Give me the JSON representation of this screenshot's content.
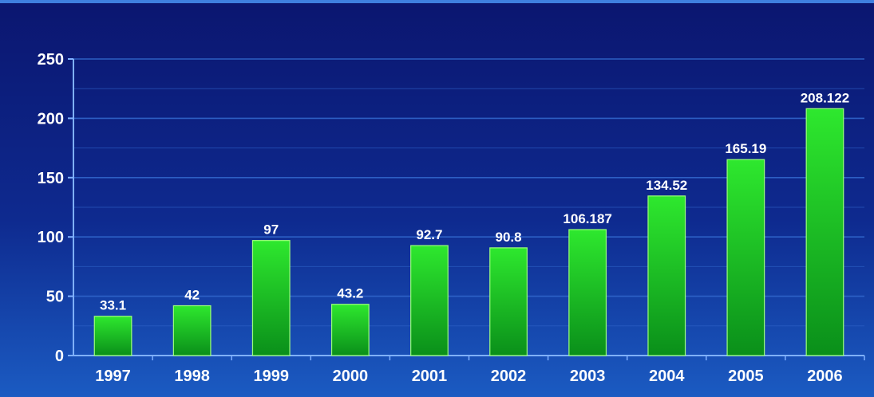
{
  "chart_data": {
    "type": "bar",
    "categories": [
      "1997",
      "1998",
      "1999",
      "2000",
      "2001",
      "2002",
      "2003",
      "2004",
      "2005",
      "2006"
    ],
    "values": [
      33.1,
      42,
      97,
      43.2,
      92.7,
      90.8,
      106.187,
      134.52,
      165.19,
      208.122
    ],
    "data_labels": [
      "33.1",
      "42",
      "97",
      "43.2",
      "92.7",
      "90.8",
      "106.187",
      "134.52",
      "165.19",
      "208.122"
    ],
    "y_ticks": [
      "0",
      "50",
      "100",
      "150",
      "200",
      "250"
    ],
    "ylim": [
      0,
      250
    ],
    "grid": true,
    "legend": "none",
    "colors": {
      "bar_light": "#2ee82e",
      "bar_dark": "#0a8f1a",
      "axis": "#7fb0ff",
      "grid": "#2f63c8",
      "text": "#ffffff"
    }
  }
}
